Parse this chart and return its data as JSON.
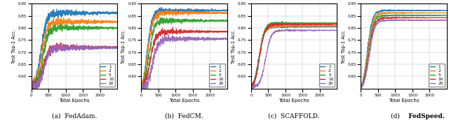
{
  "fig_width": 6.4,
  "fig_height": 1.76,
  "dpi": 100,
  "subplots": [
    "FedAdam.",
    "FedCM.",
    "SCAFFOLD.",
    "FedSpeed."
  ],
  "subplot_labels": [
    "(a)",
    "(b)",
    "(c)",
    "(d)"
  ],
  "bold_last": [
    false,
    false,
    false,
    true
  ],
  "intervals": [
    1,
    2,
    5,
    10,
    20
  ],
  "colors": [
    "#1f77b4",
    "#ff7f0e",
    "#2ca02c",
    "#d62728",
    "#9467bd"
  ],
  "x_max": 2500,
  "x_ticks": [
    0,
    500,
    1000,
    1500,
    2000
  ],
  "xlabel": "Total Epochs",
  "ylabel": "Test Top-1 Acc.",
  "ylim": [
    0.55,
    0.9
  ],
  "y_ticks": [
    0.6,
    0.65,
    0.7,
    0.75,
    0.8,
    0.85,
    0.9
  ],
  "legend_labels": [
    "1",
    "2",
    "5",
    "10",
    "20"
  ],
  "fedadam_finals": [
    0.862,
    0.825,
    0.8,
    0.72,
    0.718
  ],
  "fedadam_inflections": [
    280,
    300,
    330,
    350,
    370
  ],
  "fedadam_noise": [
    0.015,
    0.014,
    0.013,
    0.013,
    0.013
  ],
  "fedcm_finals": [
    0.872,
    0.862,
    0.83,
    0.785,
    0.755
  ],
  "fedcm_inflections": [
    170,
    190,
    220,
    260,
    330
  ],
  "fedcm_noise": [
    0.01,
    0.01,
    0.01,
    0.01,
    0.013
  ],
  "scaffold_finals": [
    0.805,
    0.808,
    0.82,
    0.815,
    0.79
  ],
  "scaffold_inflections": [
    220,
    230,
    240,
    250,
    420
  ],
  "scaffold_noise": [
    0.004,
    0.004,
    0.004,
    0.004,
    0.004
  ],
  "fedspeed_finals": [
    0.872,
    0.862,
    0.852,
    0.842,
    0.832
  ],
  "fedspeed_inflections": [
    180,
    195,
    210,
    225,
    245
  ],
  "fedspeed_noise": [
    0.003,
    0.003,
    0.003,
    0.003,
    0.003
  ]
}
